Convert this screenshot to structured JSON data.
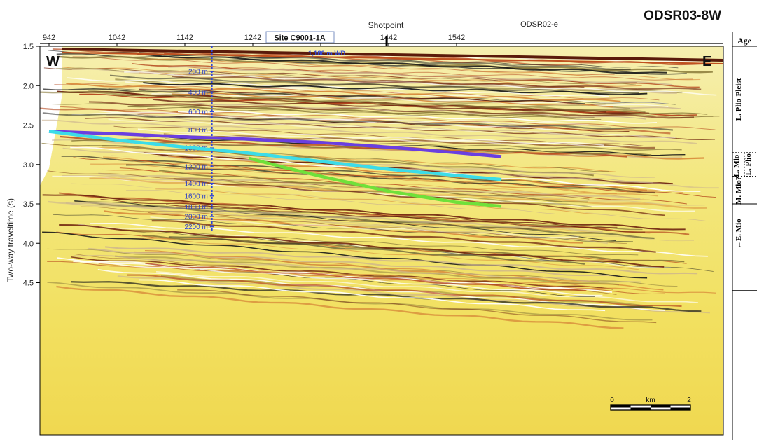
{
  "chart_data": {
    "type": "seismic-section",
    "title": "ODSR03-8W",
    "top_axis": {
      "label": "Shotpoint",
      "ticks": [
        942,
        1042,
        1142,
        1242,
        1342,
        1442,
        1542
      ],
      "range": [
        942,
        1608
      ]
    },
    "y_axis": {
      "label": "Two-way traveltime (s)",
      "ticks": [
        "1.5",
        "2.0",
        "2.5",
        "3.0",
        "3.5",
        "4.0",
        "4.5"
      ],
      "range": [
        1.5,
        4.6
      ]
    },
    "direction_labels": {
      "west": "W",
      "east": "E"
    },
    "site": {
      "label": "Site C9001-1A",
      "shotpoint": 1182,
      "water_depth_label": "1,180 m WD"
    },
    "marker": {
      "label": "ODSR02-e",
      "shotpoint": 1439
    },
    "depth_labels": [
      {
        "label": "200 m",
        "twt": 1.82
      },
      {
        "label": "400 m",
        "twt": 2.08
      },
      {
        "label": "600 m",
        "twt": 2.33
      },
      {
        "label": "800 m",
        "twt": 2.56
      },
      {
        "label": "1000 m",
        "twt": 2.79
      },
      {
        "label": "1200 m",
        "twt": 3.03
      },
      {
        "label": "1400 m",
        "twt": 3.24
      },
      {
        "label": "1600 m",
        "twt": 3.4
      },
      {
        "label": "1800 m",
        "twt": 3.54
      },
      {
        "label": "2000 m",
        "twt": 3.66
      },
      {
        "label": "2200 m",
        "twt": 3.79
      }
    ],
    "horizons": [
      {
        "color": "#6a3fe0",
        "points": [
          [
            942,
            2.58
          ],
          [
            1042,
            2.61
          ],
          [
            1142,
            2.65
          ],
          [
            1242,
            2.68
          ],
          [
            1342,
            2.72
          ],
          [
            1442,
            2.78
          ],
          [
            1542,
            2.85
          ],
          [
            1608,
            2.9
          ]
        ]
      },
      {
        "color": "#3cdce8",
        "points": [
          [
            942,
            2.58
          ],
          [
            1042,
            2.69
          ],
          [
            1142,
            2.78
          ],
          [
            1242,
            2.86
          ],
          [
            1342,
            2.96
          ],
          [
            1442,
            3.06
          ],
          [
            1542,
            3.14
          ],
          [
            1608,
            3.19
          ]
        ]
      },
      {
        "color": "#6fe03a",
        "points": [
          [
            1236,
            2.92
          ],
          [
            1290,
            3.04
          ],
          [
            1342,
            3.15
          ],
          [
            1442,
            3.34
          ],
          [
            1542,
            3.48
          ],
          [
            1608,
            3.53
          ]
        ]
      }
    ],
    "scale_bar": {
      "start": "0",
      "unit": "km",
      "end": "2"
    },
    "age_column": {
      "header": "Age",
      "intervals": [
        {
          "label": "L. Plio-Pleist",
          "top": 1.5,
          "bottom": 2.85
        },
        {
          "label": "L. Mio-",
          "top": 2.85,
          "bottom": 3.15
        },
        {
          "label": "L. Plio",
          "top": 2.85,
          "bottom": 3.15
        },
        {
          "label": "M. Mio?",
          "top": 3.15,
          "bottom": 3.5
        },
        {
          "label": "←E. Mio",
          "top": 3.5,
          "bottom": 4.6
        }
      ]
    }
  }
}
